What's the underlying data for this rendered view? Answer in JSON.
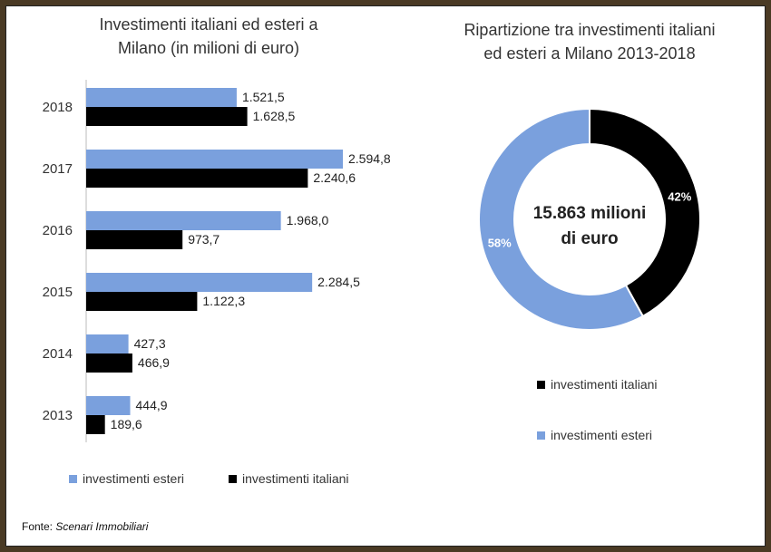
{
  "source": {
    "prefix": "Fonte:",
    "name": "Scenari Immobiliari"
  },
  "chart_data": [
    {
      "type": "bar",
      "orientation": "horizontal",
      "title": "Investimenti italiani ed esteri a Milano (in milioni di euro)",
      "title_lines": [
        "Investimenti italiani ed esteri a",
        "Milano (in milioni di euro)"
      ],
      "categories": [
        "2018",
        "2017",
        "2016",
        "2015",
        "2014",
        "2013"
      ],
      "series": [
        {
          "name": "investimenti esteri",
          "color": "#7aa0dd",
          "values": [
            1521.5,
            2594.8,
            1968.0,
            2284.5,
            427.3,
            444.9
          ],
          "labels": [
            "1.521,5",
            "2.594,8",
            "1.968,0",
            "2.284,5",
            "427,3",
            "444,9"
          ]
        },
        {
          "name": "investimenti italiani",
          "color": "#000000",
          "values": [
            1628.5,
            2240.6,
            973.7,
            1122.3,
            466.9,
            189.6
          ],
          "labels": [
            "1.628,5",
            "2.240,6",
            "973,7",
            "1.122,3",
            "466,9",
            "189,6"
          ]
        }
      ],
      "legend": "bottom",
      "grid": false
    },
    {
      "type": "pie",
      "donut": true,
      "title": "Ripartizione tra investimenti italiani ed esteri a Milano 2013-2018",
      "title_lines": [
        "Ripartizione tra investimenti italiani",
        "ed esteri a Milano 2013-2018"
      ],
      "center_text": [
        "15.863 milioni",
        "di euro"
      ],
      "slices": [
        {
          "name": "investimenti italiani",
          "value": 42,
          "label": "42%",
          "color": "#000000"
        },
        {
          "name": "investimenti esteri",
          "value": 58,
          "label": "58%",
          "color": "#7aa0dd"
        }
      ],
      "legend": "bottom"
    }
  ]
}
